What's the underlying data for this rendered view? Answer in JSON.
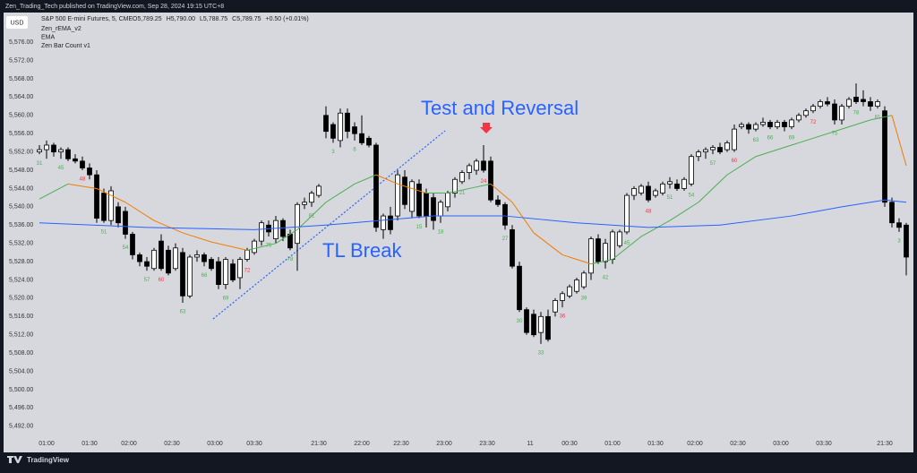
{
  "header": {
    "published": "Zen_Trading_Tech published on TradingView.com, Sep 28, 2024 19:15 UTC+8",
    "symbol": "S&P 500 E-mini Futures, 5, CME",
    "quote": [
      "O5,789.25",
      "H5,790.00",
      "L5,788.75",
      "C5,789.75",
      "+0.50 (+0.01%)"
    ],
    "currency": "USD"
  },
  "footer": "TradingView",
  "chart_data": {
    "type": "candlestick",
    "up_color": "#ffffff",
    "down_color": "#000000",
    "grid": false,
    "ylim": [
      5489.8,
      5582.5
    ],
    "xlim": [
      -0.5,
      122
    ],
    "yticks": [
      {
        "value": 5576,
        "label": "5,576.00"
      },
      {
        "value": 5572,
        "label": "5,572.00"
      },
      {
        "value": 5568,
        "label": "5,568.00"
      },
      {
        "value": 5564,
        "label": "5,564.00"
      },
      {
        "value": 5560,
        "label": "5,560.00"
      },
      {
        "value": 5556,
        "label": "5,556.00"
      },
      {
        "value": 5552,
        "label": "5,552.00"
      },
      {
        "value": 5548,
        "label": "5,548.00"
      },
      {
        "value": 5544,
        "label": "5,544.00"
      },
      {
        "value": 5540,
        "label": "5,540.00"
      },
      {
        "value": 5536,
        "label": "5,536.00"
      },
      {
        "value": 5532,
        "label": "5,532.00"
      },
      {
        "value": 5528,
        "label": "5,528.00"
      },
      {
        "value": 5524,
        "label": "5,524.00"
      },
      {
        "value": 5520,
        "label": "5,520.00"
      },
      {
        "value": 5516,
        "label": "5,516.00"
      },
      {
        "value": 5512,
        "label": "5,512.00"
      },
      {
        "value": 5508,
        "label": "5,508.00"
      },
      {
        "value": 5504,
        "label": "5,504.00"
      },
      {
        "value": 5500,
        "label": "5,500.00"
      },
      {
        "value": 5496,
        "label": "5,496.00"
      },
      {
        "value": 5492,
        "label": "5,492.00"
      }
    ],
    "xticks": [
      {
        "value": 1,
        "label": "01:00"
      },
      {
        "value": 7,
        "label": "01:30"
      },
      {
        "value": 12.5,
        "label": "02:00"
      },
      {
        "value": 18.5,
        "label": "02:30"
      },
      {
        "value": 24.5,
        "label": "03:00"
      },
      {
        "value": 30,
        "label": "03:30"
      },
      {
        "value": 39,
        "label": "21:30"
      },
      {
        "value": 45,
        "label": "22:00"
      },
      {
        "value": 50.5,
        "label": "22:30"
      },
      {
        "value": 56.5,
        "label": "23:00"
      },
      {
        "value": 62.5,
        "label": "23:30"
      },
      {
        "value": 68.5,
        "label": "11"
      },
      {
        "value": 74,
        "label": "00:30"
      },
      {
        "value": 80,
        "label": "01:00"
      },
      {
        "value": 86,
        "label": "01:30"
      },
      {
        "value": 91.5,
        "label": "02:00"
      },
      {
        "value": 97.5,
        "label": "02:30"
      },
      {
        "value": 103.5,
        "label": "03:00"
      },
      {
        "value": 109.5,
        "label": "03:30"
      },
      {
        "value": 118,
        "label": "21:30"
      }
    ],
    "ohlc": [
      [
        5552,
        5553.5,
        5551.5,
        5552.5
      ],
      [
        5552.5,
        5554.5,
        5550.5,
        5553.5
      ],
      [
        5553.5,
        5554,
        5551,
        5552
      ],
      [
        5552,
        5553,
        5550.5,
        5552.5
      ],
      [
        5552.5,
        5553,
        5550,
        5550.5
      ],
      [
        5550.5,
        5551.5,
        5549.5,
        5550
      ],
      [
        5550,
        5551,
        5548,
        5548.5
      ],
      [
        5548.5,
        5549.5,
        5546,
        5547
      ],
      [
        5547,
        5548,
        5536.5,
        5537.5
      ],
      [
        5543,
        5544,
        5536.5,
        5537
      ],
      [
        5537,
        5544.5,
        5536,
        5543.5
      ],
      [
        5540,
        5541,
        5535.5,
        5536.5
      ],
      [
        5539,
        5540,
        5533,
        5534
      ],
      [
        5534,
        5534.5,
        5528.5,
        5529.5
      ],
      [
        5529.5,
        5530,
        5527,
        5528
      ],
      [
        5528,
        5529,
        5526,
        5527
      ],
      [
        5526.5,
        5531,
        5526,
        5530.5
      ],
      [
        5532.5,
        5534,
        5526,
        5526.5
      ],
      [
        5530.5,
        5531.5,
        5525,
        5525.5
      ],
      [
        5526.5,
        5532,
        5526,
        5531
      ],
      [
        5530,
        5531,
        5519,
        5520.5
      ],
      [
        5520.5,
        5529.5,
        5520,
        5529
      ],
      [
        5529,
        5530.5,
        5528,
        5529.5
      ],
      [
        5529.5,
        5530,
        5527,
        5528
      ],
      [
        5528.5,
        5529,
        5526,
        5526.5
      ],
      [
        5528,
        5529,
        5522,
        5523
      ],
      [
        5523,
        5529,
        5522,
        5528.5
      ],
      [
        5527.5,
        5528.5,
        5523.5,
        5524
      ],
      [
        5524.5,
        5529,
        5522,
        5528.5
      ],
      [
        5528.5,
        5531,
        5528,
        5530.5
      ],
      [
        5530,
        5533,
        5529.5,
        5532.5
      ],
      [
        5532.5,
        5537,
        5531.5,
        5536.5
      ],
      [
        5536,
        5537,
        5533.5,
        5534.5
      ],
      [
        5533,
        5538,
        5532,
        5537
      ],
      [
        5537,
        5537.5,
        5532.5,
        5533.5
      ],
      [
        5534,
        5535,
        5530.5,
        5531
      ],
      [
        5532,
        5541,
        5526,
        5540.5
      ],
      [
        5540.5,
        5542,
        5539.5,
        5541
      ],
      [
        5541,
        5543.5,
        5540,
        5543
      ],
      [
        5542.5,
        5545,
        5542,
        5544.5
      ],
      [
        5560,
        5562,
        5555,
        5556.5
      ],
      [
        5558,
        5558.5,
        5554,
        5555
      ],
      [
        5554.5,
        5561.5,
        5553,
        5560.5
      ],
      [
        5560.5,
        5561.5,
        5555,
        5556.5
      ],
      [
        5557.5,
        5558.5,
        5554.5,
        5556
      ],
      [
        5556,
        5560,
        5553.5,
        5554
      ],
      [
        5555,
        5555.5,
        5553,
        5553.5
      ],
      [
        5553.5,
        5554,
        5534.5,
        5535.5
      ],
      [
        5535,
        5538.5,
        5533,
        5538
      ],
      [
        5538,
        5540,
        5534,
        5535
      ],
      [
        5538,
        5548,
        5537,
        5547
      ],
      [
        5546.5,
        5548,
        5539.5,
        5540.5
      ],
      [
        5539,
        5546,
        5537.5,
        5545.5
      ],
      [
        5545,
        5546,
        5537.5,
        5538
      ],
      [
        5543,
        5544,
        5535.5,
        5538
      ],
      [
        5542,
        5543,
        5535,
        5537
      ],
      [
        5538,
        5541.5,
        5536.5,
        5541
      ],
      [
        5540,
        5543.5,
        5539,
        5543
      ],
      [
        5543,
        5546.5,
        5542,
        5546
      ],
      [
        5545.5,
        5548,
        5545,
        5547.5
      ],
      [
        5547.5,
        5549.5,
        5546,
        5549
      ],
      [
        5548,
        5550.5,
        5547,
        5550
      ],
      [
        5550,
        5553.5,
        5547.5,
        5548
      ],
      [
        5550,
        5551,
        5541,
        5541.5
      ],
      [
        5541.5,
        5542.5,
        5540,
        5540.5
      ],
      [
        5540.5,
        5541,
        5535,
        5536
      ],
      [
        5535,
        5536,
        5526.5,
        5527
      ],
      [
        5527,
        5528,
        5517,
        5517.5
      ],
      [
        5517.5,
        5518,
        5512,
        5512.5
      ],
      [
        5516.5,
        5517.5,
        5511.5,
        5512
      ],
      [
        5512.5,
        5517,
        5510,
        5516
      ],
      [
        5516,
        5517.5,
        5510.5,
        5511
      ],
      [
        5517,
        5520,
        5516,
        5519.5
      ],
      [
        5519.5,
        5521.5,
        5518,
        5521
      ],
      [
        5520.5,
        5523,
        5520,
        5522.5
      ],
      [
        5521.5,
        5524.5,
        5521,
        5524
      ],
      [
        5522.5,
        5526,
        5522,
        5525.5
      ],
      [
        5525.5,
        5533.5,
        5524,
        5533
      ],
      [
        5533,
        5534,
        5527.5,
        5528
      ],
      [
        5528,
        5533,
        5526.5,
        5532
      ],
      [
        5528.5,
        5535,
        5527.5,
        5534.5
      ],
      [
        5531.5,
        5535,
        5531,
        5534.5
      ],
      [
        5534.5,
        5543,
        5534,
        5542.5
      ],
      [
        5542.5,
        5544.5,
        5541.5,
        5544
      ],
      [
        5543,
        5545,
        5542.5,
        5544.5
      ],
      [
        5544.5,
        5545.5,
        5541,
        5541.5
      ],
      [
        5542.5,
        5544,
        5542,
        5543.5
      ],
      [
        5543,
        5545.5,
        5542.5,
        5545
      ],
      [
        5545,
        5546.5,
        5544,
        5545.5
      ],
      [
        5545,
        5546,
        5543.5,
        5544
      ],
      [
        5544,
        5546.5,
        5543.5,
        5546
      ],
      [
        5545,
        5551.5,
        5544.5,
        5551
      ],
      [
        5551,
        5552.5,
        5550,
        5552
      ],
      [
        5552,
        5553,
        5550.5,
        5552.5
      ],
      [
        5552.5,
        5553.5,
        5551.5,
        5553
      ],
      [
        5553,
        5554,
        5551.5,
        5552
      ],
      [
        5552.5,
        5554.5,
        5552,
        5554
      ],
      [
        5552.5,
        5558,
        5552,
        5557
      ],
      [
        5557.5,
        5558.5,
        5557,
        5558
      ],
      [
        5558,
        5558.5,
        5556,
        5557
      ],
      [
        5557,
        5558.5,
        5556.5,
        5558
      ],
      [
        5558,
        5559.5,
        5557.5,
        5558.5
      ],
      [
        5558.5,
        5559,
        5557,
        5557.5
      ],
      [
        5557.5,
        5559,
        5557,
        5558.5
      ],
      [
        5558.5,
        5559,
        5556.5,
        5557.5
      ],
      [
        5557.5,
        5559.5,
        5557,
        5559
      ],
      [
        5559,
        5560.5,
        5558.5,
        5560
      ],
      [
        5560,
        5561.5,
        5559.5,
        5561
      ],
      [
        5561,
        5562.5,
        5560.5,
        5562
      ],
      [
        5562,
        5563.5,
        5561.5,
        5563
      ],
      [
        5563,
        5564,
        5562,
        5562.5
      ],
      [
        5562.5,
        5563.5,
        5558,
        5559
      ],
      [
        5559,
        5562.5,
        5558,
        5562
      ],
      [
        5562,
        5564,
        5561.5,
        5563.5
      ],
      [
        5564,
        5567,
        5562.5,
        5563
      ],
      [
        5563.5,
        5565.5,
        5562,
        5563
      ],
      [
        5563,
        5564,
        5561,
        5562
      ],
      [
        5562,
        5563.5,
        5561.5,
        5563
      ],
      [
        5561,
        5562,
        5540,
        5541
      ],
      [
        5541,
        5542,
        5535.5,
        5536.5
      ],
      [
        5536.5,
        5537.5,
        5534.5,
        5535.5
      ],
      [
        5536,
        5536.5,
        5525,
        5529
      ]
    ],
    "lines": [
      {
        "name": "Zen_rEMA_v2",
        "up_color": "#4caf50",
        "down_color": "#f57c00",
        "x": [
          0,
          4,
          8,
          12,
          16,
          20,
          24,
          29,
          33,
          36,
          40,
          44,
          47,
          50,
          54,
          57,
          60,
          63,
          66,
          69,
          73,
          77,
          80,
          84,
          88,
          92,
          96,
          100,
          104,
          108,
          112,
          116,
          119,
          121
        ],
        "values": [
          5541.7,
          5545,
          5544,
          5541,
          5537,
          5534.3,
          5532.3,
          5530.5,
          5532,
          5535,
          5541,
          5545,
          5547,
          5545,
          5543,
          5543,
          5544,
          5545,
          5541,
          5534.3,
          5529.5,
          5527.5,
          5528.5,
          5533.5,
          5537,
          5541,
          5547,
          5551,
          5553,
          5555,
          5557,
          5559,
          5560,
          5549
        ]
      },
      {
        "name": "EMA",
        "color": "#2962ff",
        "x": [
          0,
          15,
          30,
          40,
          55,
          65,
          75,
          85,
          95,
          105,
          112,
          118,
          121
        ],
        "values": [
          5536.5,
          5535.5,
          5535,
          5536,
          5538,
          5538,
          5536.5,
          5535.5,
          5536,
          5538,
          5540,
          5541.5,
          5541
        ]
      }
    ],
    "bar_count": {
      "name": "Zen Bar Count v1",
      "bars": [
        0,
        3,
        6,
        9,
        12,
        15,
        17,
        20,
        23,
        26,
        29,
        32,
        35,
        38,
        41,
        44,
        53,
        56,
        59,
        62,
        65,
        67,
        70,
        73,
        76,
        79,
        82,
        85,
        88,
        91,
        94,
        97,
        100,
        102,
        105,
        108,
        111,
        114,
        117,
        120
      ],
      "labels": [
        "31",
        "45",
        "48",
        "51",
        "54",
        "57",
        "60",
        "63",
        "66",
        "69",
        "72",
        "75",
        "78",
        "81",
        "3",
        "6",
        "15",
        "18",
        "21",
        "24",
        "27",
        "30",
        "33",
        "36",
        "39",
        "42",
        "45",
        "48",
        "51",
        "54",
        "57",
        "60",
        "63",
        "66",
        "69",
        "72",
        "75",
        "78",
        "81",
        "3"
      ],
      "colors": [
        "#4caf50",
        "#4caf50",
        "#f23645",
        "#4caf50",
        "#4caf50",
        "#4caf50",
        "#f23645",
        "#4caf50",
        "#4caf50",
        "#4caf50",
        "#f23645",
        "#4caf50",
        "#4caf50",
        "#4caf50",
        "#4caf50",
        "#4caf50",
        "#4caf50",
        "#4caf50",
        "#4caf50",
        "#f23645",
        "#4caf50",
        "#4caf50",
        "#4caf50",
        "#f23645",
        "#4caf50",
        "#4caf50",
        "#4caf50",
        "#f23645",
        "#4caf50",
        "#4caf50",
        "#4caf50",
        "#f23645",
        "#4caf50",
        "#4caf50",
        "#4caf50",
        "#f23645",
        "#4caf50",
        "#4caf50",
        "#4caf50",
        "#4caf50"
      ]
    },
    "annotations": [
      "Test and Reversal",
      "TL Break"
    ]
  }
}
